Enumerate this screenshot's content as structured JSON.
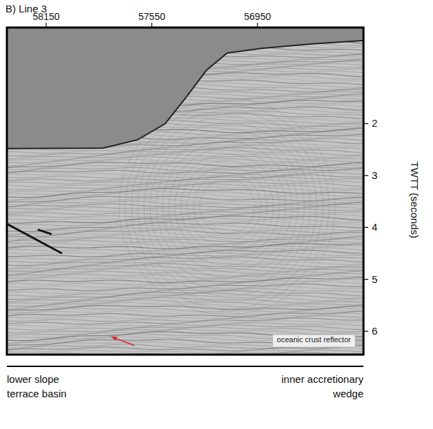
{
  "chart_data": {
    "type": "seismic_section",
    "title": "B) Line 3",
    "y_label": "TWTT (seconds)",
    "xlim": [
      58373,
      56348
    ],
    "ylim": [
      0.15,
      6.45
    ],
    "xticks": [
      58150,
      57550,
      56950
    ],
    "yticks": [
      2,
      3,
      4,
      5,
      6
    ],
    "seafloor": {
      "x": [
        58373,
        57826,
        57630,
        57474,
        57357,
        57239,
        57122,
        56927,
        56653,
        56348
      ],
      "y": [
        2.48,
        2.47,
        2.31,
        2.0,
        1.5,
        0.97,
        0.64,
        0.55,
        0.47,
        0.4
      ]
    },
    "faults": [
      {
        "x": [
          58373,
          58060
        ],
        "y": [
          3.93,
          4.5
        ]
      },
      {
        "x": [
          58197,
          58119
        ],
        "y": [
          4.04,
          4.13
        ]
      }
    ],
    "arrow": {
      "x": [
        57650,
        57779
      ],
      "y": [
        6.27,
        6.11
      ]
    },
    "annotation": "oceanic crust reflector",
    "bottom_left": [
      "lower slope",
      "terrace basin"
    ],
    "bottom_right": [
      "inner accretionary",
      "wedge"
    ]
  }
}
